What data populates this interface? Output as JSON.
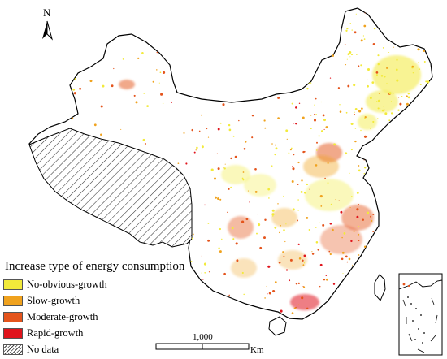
{
  "north_arrow": {
    "label": "N",
    "icon": "north-arrow-icon"
  },
  "legend": {
    "title": "Increase type of energy consumption",
    "items": [
      {
        "label": "No-obvious-growth",
        "color": "#f2ea3a"
      },
      {
        "label": "Slow-growth",
        "color": "#f0a21e"
      },
      {
        "label": "Moderate-growth",
        "color": "#e4541c"
      },
      {
        "label": "Rapid-growth",
        "color": "#e0141c"
      },
      {
        "label": "No data",
        "pattern": "hatched"
      }
    ]
  },
  "scale_bar": {
    "value": "1,000",
    "unit": "Km"
  },
  "colors": {
    "boundary": "#000000",
    "land": "#ffffff",
    "no_obvious_growth": "#f2ea3a",
    "slow_growth": "#f0a21e",
    "moderate_growth": "#e4541c",
    "rapid_growth": "#e0141c"
  }
}
